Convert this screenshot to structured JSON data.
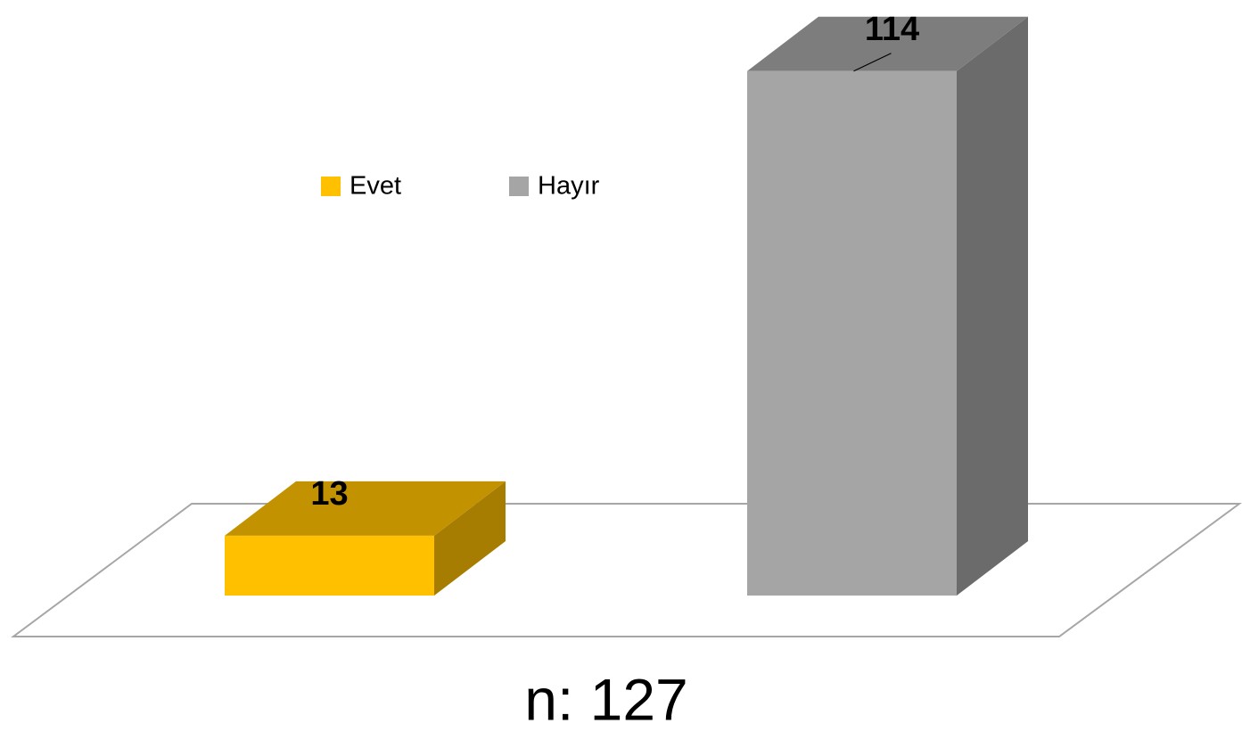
{
  "chart_data": {
    "type": "bar3d",
    "series": [
      {
        "name": "Evet",
        "color": "#ffc000",
        "values": [
          13
        ]
      },
      {
        "name": "Hayır",
        "color": "#a5a5a5",
        "values": [
          114
        ]
      }
    ],
    "legend": "top-left",
    "annotation": "n: 127"
  }
}
